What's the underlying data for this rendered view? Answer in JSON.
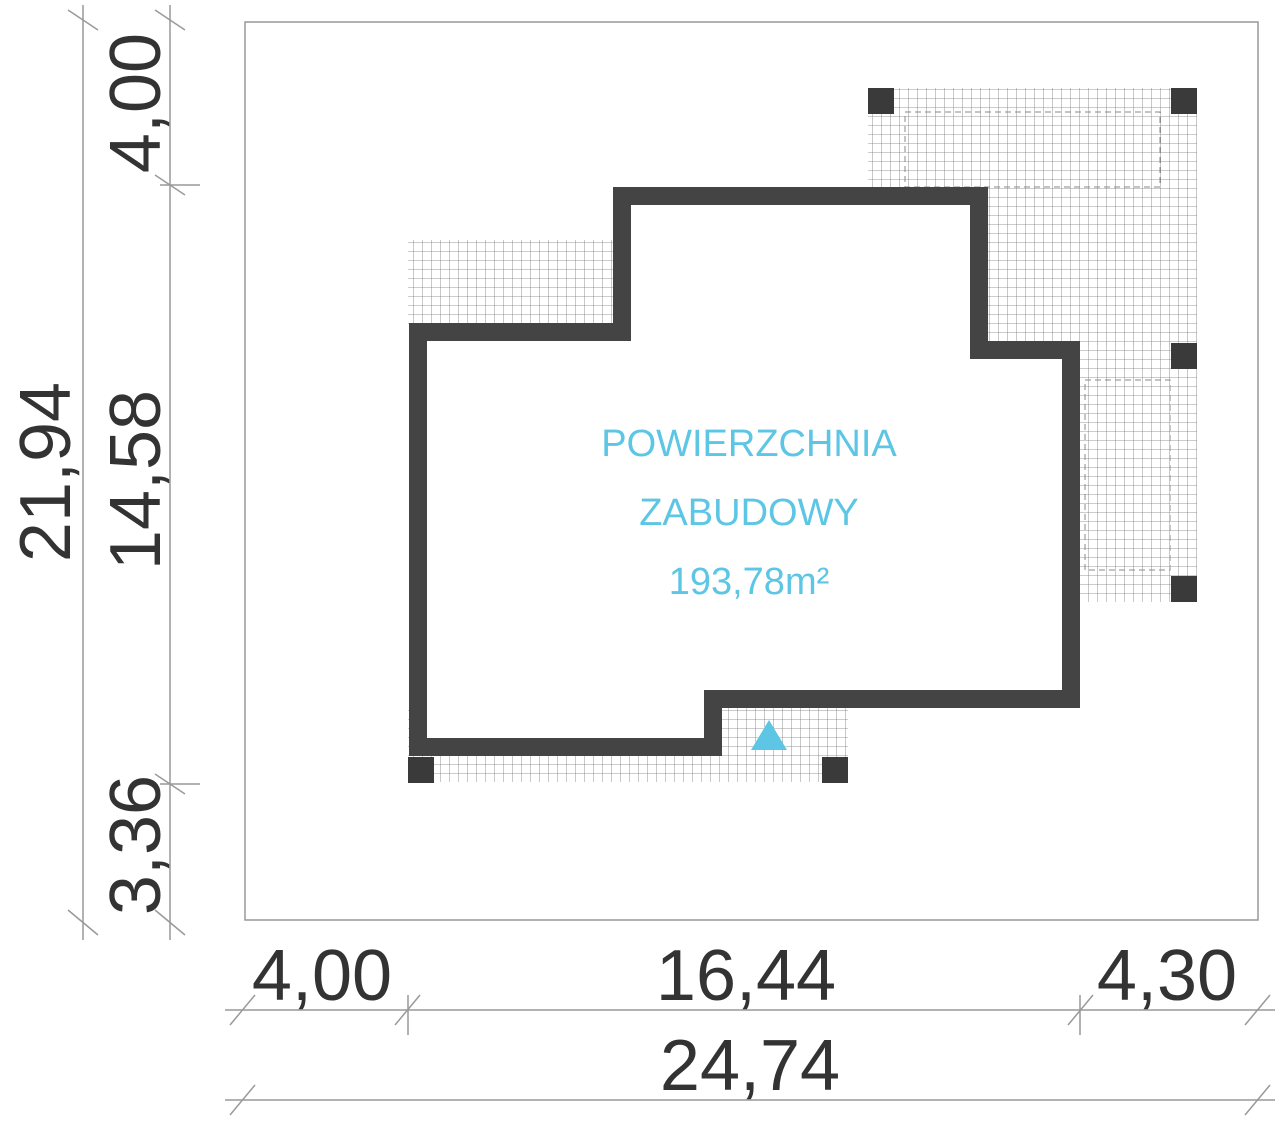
{
  "dimensions": {
    "vertical_inner": [
      "4,00",
      "14,58",
      "3,36"
    ],
    "vertical_total": "21,94",
    "horizontal_inner": [
      "4,00",
      "16,44",
      "4,30"
    ],
    "horizontal_total": "24,74"
  },
  "area_label": {
    "lines": [
      "POWIERZCHNIA",
      "ZABUDOWY"
    ],
    "area": "193,78m²"
  }
}
